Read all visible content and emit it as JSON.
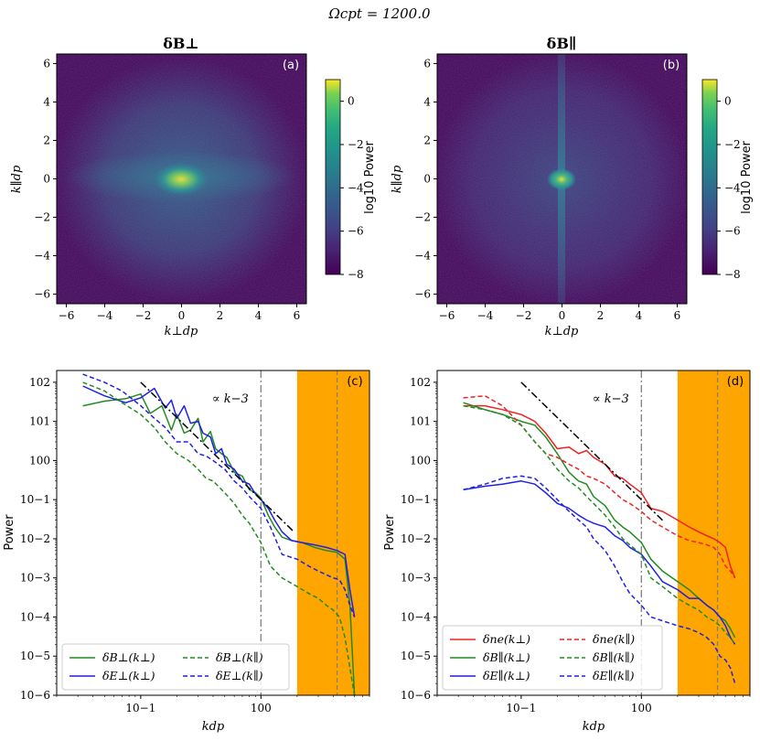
{
  "figure": {
    "suptitle": "Ωcpt = 1200.0"
  },
  "colors": {
    "green": "#228b22",
    "blue": "#1f1fe6",
    "red": "#ee2222",
    "orange": "#ffa500",
    "black": "#000000",
    "gray": "#808080"
  },
  "chart_data": [
    {
      "id": "a",
      "type": "heatmap",
      "title": "δB⊥",
      "panel_label": "(a)",
      "xlabel": "k⊥dp",
      "ylabel": "k∥dp",
      "xlim": [
        -6.5,
        6.5
      ],
      "ylim": [
        -6.5,
        6.5
      ],
      "xticks": [
        "−6",
        "−4",
        "−2",
        "0",
        "2",
        "4",
        "6"
      ],
      "yticks": [
        "−6",
        "−4",
        "−2",
        "0",
        "2",
        "4",
        "6"
      ],
      "colorbar": {
        "label": "log10 Power",
        "range": [
          -8,
          1
        ],
        "ticks": [
          "0",
          "−2",
          "−4",
          "−6",
          "−8"
        ]
      },
      "features": {
        "core_log_power": 1.0,
        "background_log_power": -7.5,
        "perp_elongated_band": true
      }
    },
    {
      "id": "b",
      "type": "heatmap",
      "title": "δB∥",
      "panel_label": "(b)",
      "xlabel": "k⊥dp",
      "ylabel": "k∥dp",
      "xlim": [
        -6.5,
        6.5
      ],
      "ylim": [
        -6.5,
        6.5
      ],
      "xticks": [
        "−6",
        "−4",
        "−2",
        "0",
        "2",
        "4",
        "6"
      ],
      "yticks": [
        "−6",
        "−4",
        "−2",
        "0",
        "2",
        "4",
        "6"
      ],
      "colorbar": {
        "label": "log10 Power",
        "range": [
          -8,
          1
        ],
        "ticks": [
          "0",
          "−2",
          "−4",
          "−6",
          "−8"
        ]
      },
      "features": {
        "core_log_power": 1.0,
        "background_log_power": -7.5,
        "vertical_stripe_at_kperp_zero": true
      }
    },
    {
      "id": "c",
      "type": "line",
      "panel_label": "(c)",
      "xlabel": "kdp",
      "ylabel": "Power",
      "xscale": "log",
      "yscale": "log",
      "xlim": [
        0.02,
        8.0
      ],
      "ylim": [
        1e-06,
        200
      ],
      "xticks": [
        {
          "v": 0.1,
          "t": "10−1"
        },
        {
          "v": 1,
          "t": "100"
        }
      ],
      "yticks": [
        {
          "v": 1e-06,
          "t": "10−6"
        },
        {
          "v": 1e-05,
          "t": "10−5"
        },
        {
          "v": 0.0001,
          "t": "10−4"
        },
        {
          "v": 0.001,
          "t": "10−3"
        },
        {
          "v": 0.01,
          "t": "10−2"
        },
        {
          "v": 0.1,
          "t": "10−1"
        },
        {
          "v": 1,
          "t": "100"
        },
        {
          "v": 10,
          "t": "101"
        },
        {
          "v": 100,
          "t": "102"
        }
      ],
      "shaded_region": [
        2.0,
        8.0
      ],
      "vlines": [
        {
          "x": 1.0,
          "style": "dashdot"
        },
        {
          "x": 4.3,
          "style": "dashed"
        }
      ],
      "reference": {
        "label": "∝ k−3",
        "x": [
          0.1,
          1.9
        ],
        "y": [
          100,
          0.0146
        ]
      },
      "legend": {
        "position": "lower-left",
        "columns": 2
      },
      "series": [
        {
          "name": "δB⊥(k⊥)",
          "color": "green",
          "dash": "solid",
          "x": [
            0.033,
            0.05,
            0.075,
            0.1,
            0.12,
            0.15,
            0.18,
            0.2,
            0.23,
            0.26,
            0.3,
            0.33,
            0.38,
            0.42,
            0.47,
            0.52,
            0.6,
            0.7,
            0.8,
            0.9,
            1.0,
            1.15,
            1.3,
            1.5,
            1.8,
            2.2,
            2.8,
            3.5,
            4.3,
            5.0,
            5.5,
            6.0
          ],
          "y": [
            25,
            33,
            38,
            50,
            16,
            25,
            6,
            15,
            5,
            6,
            12,
            3,
            5.5,
            2,
            1.5,
            1.2,
            0.5,
            0.4,
            0.18,
            0.15,
            0.11,
            0.04,
            0.02,
            0.011,
            0.009,
            0.008,
            0.006,
            0.005,
            0.0045,
            0.003,
            0.0002,
            1e-06
          ]
        },
        {
          "name": "δE⊥(k⊥)",
          "color": "blue",
          "dash": "solid",
          "x": [
            0.033,
            0.05,
            0.075,
            0.1,
            0.13,
            0.16,
            0.18,
            0.2,
            0.23,
            0.26,
            0.3,
            0.33,
            0.38,
            0.42,
            0.47,
            0.52,
            0.6,
            0.7,
            0.8,
            0.9,
            1.0,
            1.15,
            1.3,
            1.5,
            1.8,
            2.2,
            2.8,
            3.5,
            4.3,
            5.0,
            5.5,
            6.0
          ],
          "y": [
            80,
            45,
            30,
            40,
            70,
            22,
            35,
            12,
            25,
            9,
            10,
            5,
            4,
            1.5,
            2,
            0.8,
            0.6,
            0.3,
            0.25,
            0.14,
            0.1,
            0.06,
            0.03,
            0.015,
            0.009,
            0.008,
            0.007,
            0.006,
            0.005,
            0.004,
            0.0005,
            0.0001
          ]
        },
        {
          "name": "δB⊥(k∥)",
          "color": "green",
          "dash": "dashed",
          "x": [
            0.033,
            0.05,
            0.07,
            0.1,
            0.13,
            0.16,
            0.2,
            0.25,
            0.3,
            0.35,
            0.4,
            0.5,
            0.6,
            0.7,
            0.8,
            1.0,
            1.2,
            1.5,
            2.0,
            2.5,
            3.0,
            3.5,
            4.0,
            4.5,
            5.0,
            5.5,
            6.0
          ],
          "y": [
            100,
            60,
            30,
            15,
            7,
            3,
            1.5,
            1.0,
            0.6,
            0.35,
            0.3,
            0.15,
            0.08,
            0.04,
            0.025,
            0.008,
            0.002,
            0.001,
            0.0006,
            0.0004,
            0.0003,
            0.0002,
            0.00015,
            0.0001,
            3e-05,
            5e-06,
            1e-06
          ]
        },
        {
          "name": "δE⊥(k∥)",
          "color": "blue",
          "dash": "dashed",
          "x": [
            0.033,
            0.05,
            0.07,
            0.1,
            0.13,
            0.16,
            0.2,
            0.25,
            0.3,
            0.35,
            0.4,
            0.5,
            0.6,
            0.7,
            0.8,
            1.0,
            1.2,
            1.5,
            2.0,
            2.5,
            3.0,
            3.5,
            4.0,
            4.5,
            5.0,
            5.5,
            6.0
          ],
          "y": [
            160,
            100,
            60,
            25,
            12,
            7,
            3,
            3,
            1.5,
            1.3,
            1.0,
            0.6,
            0.3,
            0.2,
            0.12,
            0.06,
            0.02,
            0.004,
            0.003,
            0.002,
            0.0015,
            0.0012,
            0.001,
            0.0009,
            0.0005,
            0.0002,
            0.0001
          ]
        }
      ]
    },
    {
      "id": "d",
      "type": "line",
      "panel_label": "(d)",
      "xlabel": "kdp",
      "ylabel": "Power",
      "xscale": "log",
      "yscale": "log",
      "xlim": [
        0.02,
        8.0
      ],
      "ylim": [
        1e-06,
        200
      ],
      "xticks": [
        {
          "v": 0.1,
          "t": "10−1"
        },
        {
          "v": 1,
          "t": "100"
        }
      ],
      "yticks": [
        {
          "v": 1e-06,
          "t": "10−6"
        },
        {
          "v": 1e-05,
          "t": "10−5"
        },
        {
          "v": 0.0001,
          "t": "10−4"
        },
        {
          "v": 0.001,
          "t": "10−3"
        },
        {
          "v": 0.01,
          "t": "10−2"
        },
        {
          "v": 0.1,
          "t": "10−1"
        },
        {
          "v": 1,
          "t": "100"
        },
        {
          "v": 10,
          "t": "101"
        },
        {
          "v": 100,
          "t": "102"
        }
      ],
      "shaded_region": [
        2.0,
        8.0
      ],
      "vlines": [
        {
          "x": 1.0,
          "style": "dashdot"
        },
        {
          "x": 4.3,
          "style": "dashed"
        }
      ],
      "reference": {
        "label": "∝ k−3",
        "x": [
          0.1,
          1.5
        ],
        "y": [
          100,
          0.0296
        ]
      },
      "legend": {
        "position": "lower-left",
        "columns": 2
      },
      "series": [
        {
          "name": "δne(k⊥)",
          "color": "red",
          "dash": "solid",
          "x": [
            0.033,
            0.05,
            0.07,
            0.1,
            0.13,
            0.16,
            0.2,
            0.25,
            0.3,
            0.35,
            0.4,
            0.5,
            0.6,
            0.7,
            0.8,
            1.0,
            1.2,
            1.5,
            2.0,
            2.5,
            3.0,
            3.5,
            4.0,
            4.5,
            5.0,
            5.5,
            6.0
          ],
          "y": [
            25,
            25,
            20,
            15,
            10,
            5,
            2,
            2.2,
            1.5,
            1.8,
            1.2,
            0.8,
            0.4,
            0.35,
            0.25,
            0.15,
            0.06,
            0.05,
            0.03,
            0.02,
            0.015,
            0.012,
            0.01,
            0.008,
            0.006,
            0.002,
            0.001
          ]
        },
        {
          "name": "δB∥(k⊥)",
          "color": "green",
          "dash": "solid",
          "x": [
            0.033,
            0.05,
            0.07,
            0.1,
            0.13,
            0.16,
            0.2,
            0.25,
            0.3,
            0.35,
            0.4,
            0.5,
            0.6,
            0.7,
            0.8,
            1.0,
            1.2,
            1.5,
            2.0,
            2.5,
            3.0,
            3.5,
            4.0,
            4.5,
            5.0,
            5.5,
            6.0
          ],
          "y": [
            30,
            20,
            15,
            10,
            8,
            4,
            1.5,
            0.5,
            0.3,
            0.25,
            0.12,
            0.07,
            0.03,
            0.02,
            0.015,
            0.008,
            0.003,
            0.0015,
            0.0008,
            0.0005,
            0.0003,
            0.0002,
            0.00015,
            0.0001,
            8e-05,
            5e-05,
            3e-05
          ]
        },
        {
          "name": "δE∥(k⊥)",
          "color": "blue",
          "dash": "solid",
          "x": [
            0.033,
            0.05,
            0.07,
            0.1,
            0.13,
            0.16,
            0.2,
            0.25,
            0.3,
            0.35,
            0.4,
            0.5,
            0.6,
            0.7,
            0.8,
            1.0,
            1.2,
            1.5,
            2.0,
            2.5,
            3.0,
            3.5,
            4.0,
            4.5,
            5.0,
            5.5,
            6.0
          ],
          "y": [
            0.18,
            0.22,
            0.25,
            0.3,
            0.25,
            0.15,
            0.08,
            0.06,
            0.04,
            0.03,
            0.025,
            0.02,
            0.012,
            0.009,
            0.006,
            0.004,
            0.002,
            0.0008,
            0.0005,
            0.0003,
            0.0003,
            0.0002,
            0.00015,
            0.0001,
            6e-05,
            3e-05,
            2e-05
          ]
        },
        {
          "name": "δne(k∥)",
          "color": "red",
          "dash": "dashed",
          "x": [
            0.033,
            0.05,
            0.07,
            0.1,
            0.13,
            0.16,
            0.2,
            0.25,
            0.3,
            0.35,
            0.4,
            0.5,
            0.6,
            0.7,
            0.8,
            1.0,
            1.2,
            1.5,
            2.0,
            2.5,
            3.0,
            3.5,
            4.0,
            4.5,
            5.0,
            5.5,
            6.0
          ],
          "y": [
            40,
            45,
            25,
            8,
            3,
            1.5,
            1.2,
            0.8,
            0.6,
            0.4,
            0.35,
            0.25,
            0.15,
            0.1,
            0.08,
            0.05,
            0.03,
            0.02,
            0.012,
            0.009,
            0.008,
            0.007,
            0.006,
            0.004,
            0.002,
            0.0015,
            0.001
          ]
        },
        {
          "name": "δB∥(k∥)",
          "color": "green",
          "dash": "dashed",
          "x": [
            0.033,
            0.05,
            0.07,
            0.1,
            0.13,
            0.16,
            0.2,
            0.25,
            0.3,
            0.35,
            0.4,
            0.5,
            0.6,
            0.7,
            0.8,
            1.0,
            1.2,
            1.5,
            2.0,
            2.5,
            3.0,
            3.5,
            4.0,
            4.5,
            5.0,
            5.5,
            6.0
          ],
          "y": [
            25,
            20,
            15,
            8,
            3,
            1.5,
            0.6,
            0.3,
            0.2,
            0.12,
            0.08,
            0.04,
            0.02,
            0.01,
            0.007,
            0.004,
            0.001,
            0.0006,
            0.0003,
            0.0002,
            0.00015,
            0.0001,
            8e-05,
            6e-05,
            4e-05,
            3e-05,
            2e-05
          ]
        },
        {
          "name": "δE∥(k∥)",
          "color": "blue",
          "dash": "dashed",
          "x": [
            0.033,
            0.05,
            0.07,
            0.1,
            0.13,
            0.16,
            0.2,
            0.25,
            0.3,
            0.35,
            0.4,
            0.5,
            0.6,
            0.7,
            0.8,
            1.0,
            1.2,
            1.5,
            2.0,
            2.5,
            3.0,
            3.5,
            4.0,
            4.5,
            5.0,
            5.5,
            6.0
          ],
          "y": [
            0.18,
            0.25,
            0.35,
            0.4,
            0.35,
            0.2,
            0.1,
            0.05,
            0.03,
            0.02,
            0.01,
            0.005,
            0.002,
            0.0008,
            0.0004,
            0.0002,
            0.0001,
            8e-05,
            6e-05,
            5e-05,
            4e-05,
            3e-05,
            2e-05,
            1e-05,
            8e-06,
            5e-06,
            2e-06
          ]
        }
      ]
    }
  ]
}
